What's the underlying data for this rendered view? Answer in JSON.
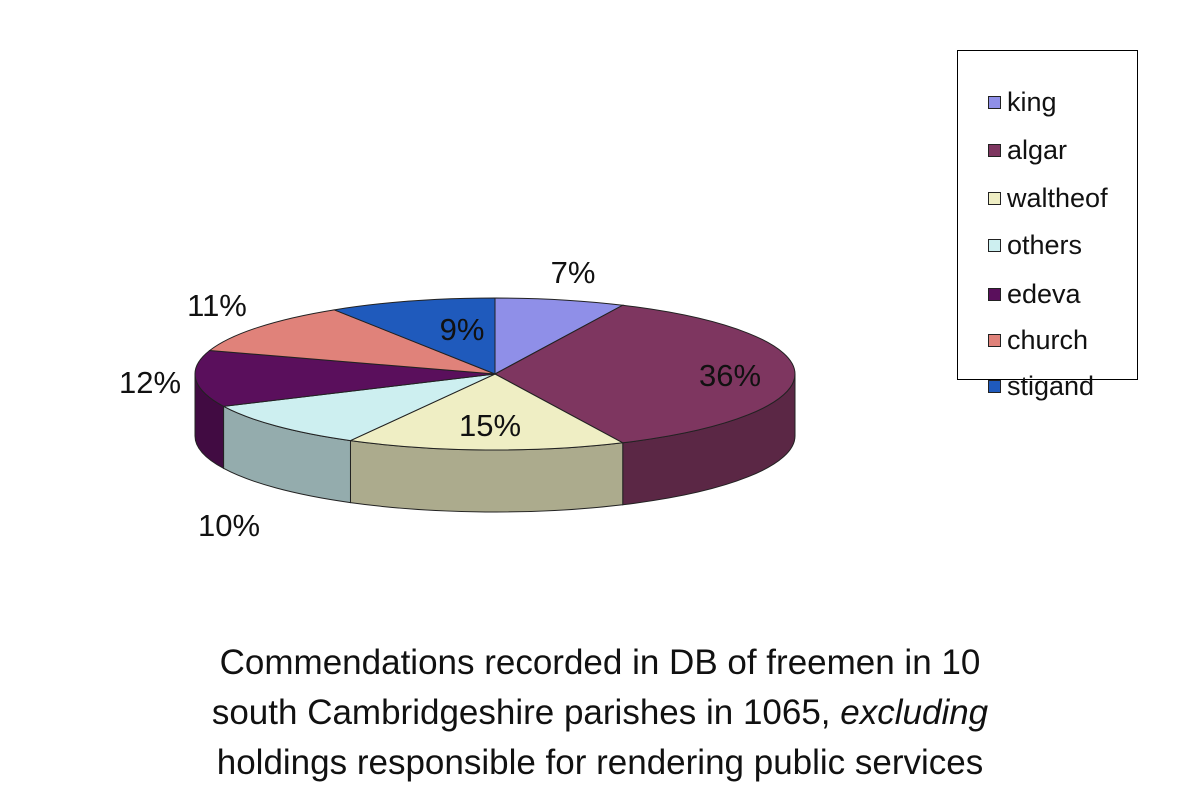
{
  "chart_data": {
    "type": "pie",
    "style": "3d-exploded-none",
    "slices": [
      {
        "name": "king",
        "value": 7,
        "label": "7%",
        "color": "#8f8fe8"
      },
      {
        "name": "algar",
        "value": 36,
        "label": "36%",
        "color": "#7e3660"
      },
      {
        "name": "waltheof",
        "value": 15,
        "label": "15%",
        "color": "#efeec4"
      },
      {
        "name": "others",
        "value": 10,
        "label": "10%",
        "color": "#cdeff0"
      },
      {
        "name": "edeva",
        "value": 12,
        "label": "12%",
        "color": "#5a0f5c"
      },
      {
        "name": "church",
        "value": 11,
        "label": "11%",
        "color": "#e0827a"
      },
      {
        "name": "stigand",
        "value": 9,
        "label": "9%",
        "color": "#1f5abc"
      }
    ],
    "legend_position": "top-right",
    "legend": [
      "king",
      "algar",
      "waltheof",
      "others",
      "edeva",
      "church",
      "stigand"
    ]
  },
  "caption": {
    "line1": "Commendations recorded in DB of freemen in 10",
    "line2_pre": "south Cambridgeshire parishes in 1065, ",
    "line2_em": "excluding",
    "line3": "holdings responsible for rendering public services"
  }
}
